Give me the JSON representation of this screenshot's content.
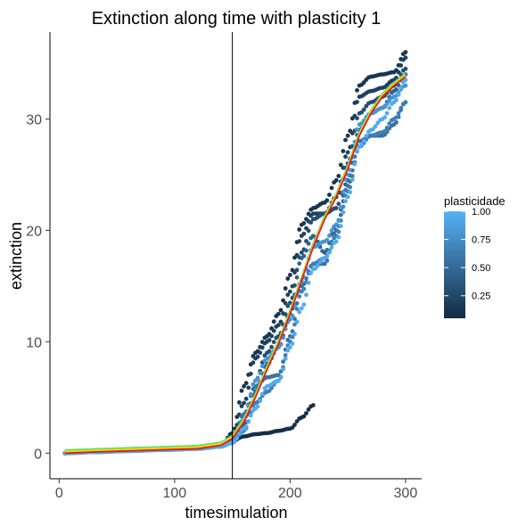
{
  "chart_data": {
    "type": "scatter",
    "title": "Extinction along time with plasticity 1",
    "xlabel": "timesimulation",
    "ylabel": "extinction",
    "xlim": [
      -8,
      314
    ],
    "ylim": [
      -2.3,
      37.8
    ],
    "x_ticks": [
      0,
      100,
      200,
      300
    ],
    "y_ticks": [
      0,
      10,
      20,
      30
    ],
    "x_tick_labels": [
      "0",
      "100",
      "200",
      "300"
    ],
    "y_tick_labels": [
      "0",
      "10",
      "20",
      "30"
    ],
    "grid": false,
    "vline_x": 150,
    "legend": {
      "title": "plasticidade",
      "position": "right",
      "color_low": "#132b43",
      "color_high": "#56b1f7",
      "range": [
        0.05,
        1.0
      ],
      "ticks": [
        0.25,
        0.5,
        0.75,
        1.0
      ],
      "tick_labels": [
        "0.25",
        "0.50",
        "0.75",
        "1.00"
      ]
    },
    "trend_colors": {
      "smooth": "#e41a1c",
      "fit_a": "#ffd700",
      "fit_b": "#66e066"
    },
    "series": [
      {
        "plasticity": 0.08,
        "x": [
          5,
          30,
          60,
          90,
          120,
          140,
          150,
          160,
          170,
          180,
          190,
          200,
          210,
          220
        ],
        "y": [
          0,
          0.1,
          0.2,
          0.3,
          0.4,
          0.6,
          1.1,
          1.5,
          1.7,
          1.8,
          2.0,
          2.2,
          3.2,
          4.3
        ]
      },
      {
        "plasticity": 0.12,
        "x": [
          5,
          30,
          60,
          90,
          120,
          140,
          150,
          160,
          170,
          180,
          190,
          200,
          210,
          220,
          230,
          240,
          250,
          260,
          270,
          280,
          290,
          300
        ],
        "y": [
          0,
          0.1,
          0.2,
          0.3,
          0.4,
          0.6,
          1.8,
          6.0,
          9.0,
          10.5,
          12.5,
          16.0,
          20.5,
          22.0,
          22.5,
          24.5,
          28.5,
          33.0,
          33.8,
          34.0,
          34.2,
          36.0
        ]
      },
      {
        "plasticity": 0.2,
        "x": [
          5,
          30,
          60,
          90,
          120,
          140,
          150,
          160,
          170,
          180,
          190,
          200,
          210,
          220,
          230,
          240,
          250,
          260,
          270,
          280,
          290,
          300
        ],
        "y": [
          0,
          0.1,
          0.2,
          0.3,
          0.4,
          0.6,
          1.5,
          4.5,
          8.5,
          10.0,
          11.5,
          14.5,
          19.5,
          21.5,
          21.5,
          23.0,
          27.0,
          32.0,
          32.5,
          32.8,
          33.5,
          35.5
        ]
      },
      {
        "plasticity": 0.3,
        "x": [
          5,
          30,
          60,
          90,
          120,
          140,
          150,
          160,
          170,
          180,
          190,
          200,
          210,
          220,
          230,
          240,
          250,
          260,
          270,
          280,
          290,
          300
        ],
        "y": [
          0,
          0.1,
          0.2,
          0.3,
          0.4,
          0.6,
          1.3,
          3.0,
          6.5,
          9.0,
          10.5,
          13.5,
          18.0,
          21.0,
          21.5,
          22.0,
          26.0,
          30.5,
          31.5,
          32.0,
          33.0,
          34.5
        ]
      },
      {
        "plasticity": 0.45,
        "x": [
          5,
          30,
          60,
          90,
          120,
          140,
          150,
          160,
          170,
          180,
          190,
          200,
          210,
          220,
          230,
          240,
          250,
          260,
          270,
          280,
          290,
          300
        ],
        "y": [
          0,
          0.1,
          0.2,
          0.3,
          0.4,
          0.6,
          1.1,
          2.5,
          5.5,
          8.0,
          9.5,
          12.5,
          17.5,
          19.5,
          18.0,
          20.5,
          24.5,
          29.0,
          30.5,
          31.0,
          32.5,
          34.0
        ]
      },
      {
        "plasticity": 0.55,
        "x": [
          5,
          30,
          60,
          90,
          120,
          140,
          150,
          160,
          170,
          180,
          190,
          200,
          210,
          220,
          230,
          240,
          250,
          260,
          270,
          280,
          290,
          300
        ],
        "y": [
          0,
          0.1,
          0.2,
          0.3,
          0.4,
          0.6,
          1.2,
          3.5,
          6.0,
          6.8,
          7.0,
          10.5,
          15.0,
          17.0,
          17.0,
          20.0,
          24.0,
          28.0,
          28.5,
          28.5,
          29.5,
          31.5
        ]
      },
      {
        "plasticity": 0.65,
        "x": [
          5,
          30,
          60,
          90,
          120,
          140,
          150,
          160,
          170,
          180,
          190,
          200,
          210,
          220,
          230,
          240,
          250,
          260,
          270,
          280,
          290,
          300
        ],
        "y": [
          0,
          0.1,
          0.2,
          0.3,
          0.4,
          0.6,
          1.0,
          2.0,
          4.5,
          5.5,
          6.5,
          10.0,
          14.5,
          17.0,
          17.5,
          19.5,
          23.5,
          27.5,
          28.5,
          28.8,
          30.0,
          31.5
        ]
      },
      {
        "plasticity": 0.8,
        "x": [
          5,
          30,
          60,
          90,
          120,
          140,
          150,
          160,
          170,
          180,
          190,
          200,
          210,
          220,
          230,
          240,
          250,
          260,
          270,
          280,
          290,
          300
        ],
        "y": [
          0,
          0.1,
          0.2,
          0.3,
          0.4,
          0.6,
          1.0,
          3.0,
          6.5,
          8.5,
          9.5,
          12.0,
          15.5,
          18.5,
          19.0,
          20.5,
          25.0,
          29.5,
          30.5,
          31.0,
          32.0,
          33.0
        ]
      },
      {
        "plasticity": 0.95,
        "x": [
          5,
          30,
          60,
          90,
          120,
          140,
          150,
          160,
          170,
          180,
          190,
          200,
          210,
          220,
          230,
          240,
          250,
          260,
          270,
          280,
          290,
          300
        ],
        "y": [
          0,
          0.1,
          0.2,
          0.3,
          0.4,
          0.6,
          0.9,
          2.2,
          4.0,
          6.0,
          6.5,
          9.5,
          13.0,
          16.5,
          17.5,
          19.0,
          23.0,
          27.5,
          29.0,
          30.0,
          31.5,
          33.5
        ]
      }
    ],
    "smooth": {
      "x": [
        5,
        30,
        60,
        90,
        120,
        140,
        150,
        160,
        170,
        180,
        190,
        200,
        210,
        220,
        230,
        240,
        250,
        260,
        270,
        280,
        290,
        300
      ],
      "y": [
        0,
        0.1,
        0.2,
        0.3,
        0.4,
        0.7,
        1.3,
        2.8,
        5.0,
        7.5,
        9.8,
        12.5,
        15.5,
        18.5,
        21.0,
        23.0,
        25.5,
        28.5,
        30.5,
        32.0,
        33.0,
        33.8
      ]
    }
  }
}
